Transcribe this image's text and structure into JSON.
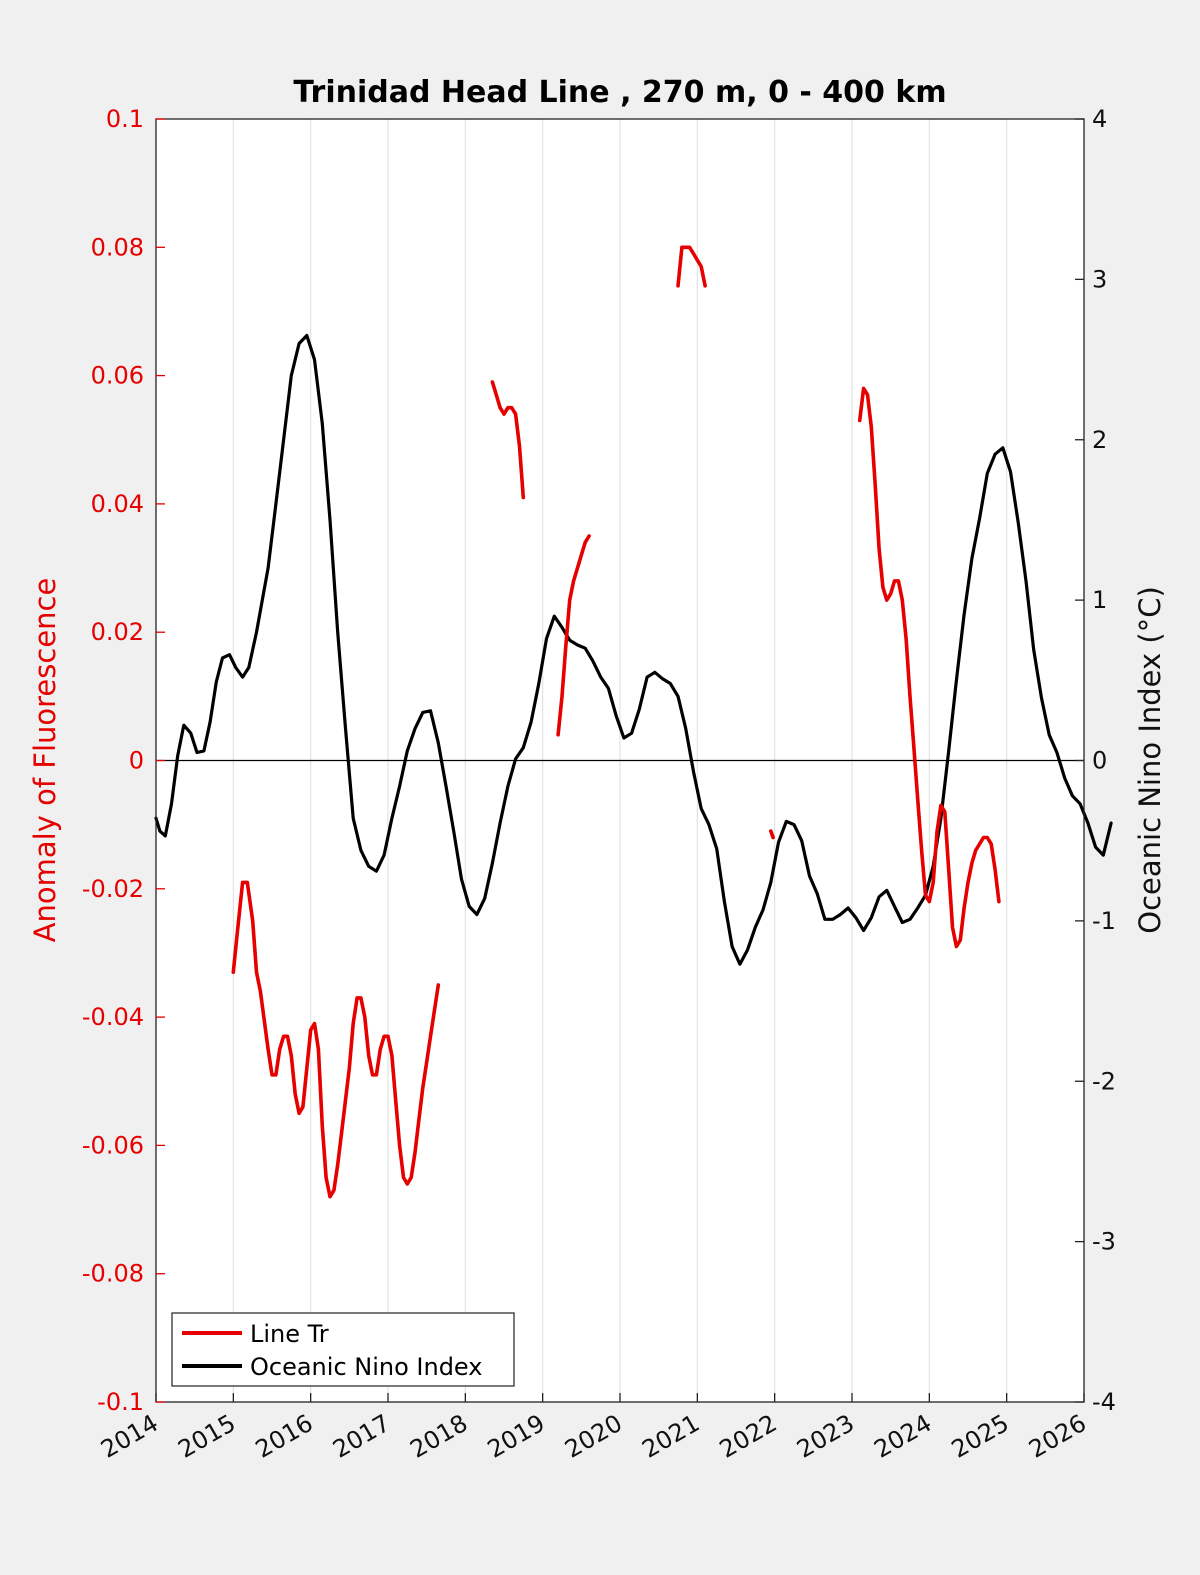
{
  "chart_data": {
    "type": "line",
    "title": "Trinidad Head Line , 270 m, 0 - 400 km",
    "ylabel_left": "Anomaly of Fluorescence",
    "ylabel_right": "Oceanic Nino Index (°C)",
    "xlim": [
      2014,
      2026
    ],
    "ylim_left": [
      -0.1,
      0.1
    ],
    "ylim_right": [
      -4,
      4
    ],
    "x_ticks": [
      "2014",
      "2015",
      "2016",
      "2017",
      "2018",
      "2019",
      "2020",
      "2021",
      "2022",
      "2023",
      "2024",
      "2025",
      "2026"
    ],
    "y_left_ticks": [
      "0.1",
      "0.08",
      "0.06",
      "0.04",
      "0.02",
      "0",
      "-0.02",
      "-0.04",
      "-0.06",
      "-0.08",
      "-0.1"
    ],
    "y_right_ticks": [
      "4",
      "3",
      "2",
      "1",
      "0",
      "-1",
      "-2",
      "-3",
      "-4"
    ],
    "grid": "vertical",
    "legend_position": "bottom-left",
    "colors": {
      "line_tr": "#e60000",
      "oni": "#000000",
      "axis_left": "#e60000"
    },
    "series": [
      {
        "name": "Line Tr",
        "axis": "left",
        "segments": [
          [
            [
              2015.0,
              -0.033
            ],
            [
              2015.05,
              -0.027
            ],
            [
              2015.12,
              -0.019
            ],
            [
              2015.18,
              -0.019
            ],
            [
              2015.25,
              -0.025
            ],
            [
              2015.3,
              -0.033
            ],
            [
              2015.35,
              -0.036
            ],
            [
              2015.45,
              -0.045
            ],
            [
              2015.5,
              -0.049
            ],
            [
              2015.55,
              -0.049
            ],
            [
              2015.6,
              -0.045
            ],
            [
              2015.65,
              -0.043
            ],
            [
              2015.7,
              -0.043
            ],
            [
              2015.75,
              -0.046
            ],
            [
              2015.8,
              -0.052
            ],
            [
              2015.85,
              -0.055
            ],
            [
              2015.9,
              -0.054
            ],
            [
              2015.95,
              -0.048
            ],
            [
              2016.0,
              -0.042
            ],
            [
              2016.05,
              -0.041
            ],
            [
              2016.1,
              -0.045
            ],
            [
              2016.15,
              -0.057
            ],
            [
              2016.2,
              -0.065
            ],
            [
              2016.25,
              -0.068
            ],
            [
              2016.3,
              -0.067
            ],
            [
              2016.35,
              -0.063
            ],
            [
              2016.4,
              -0.058
            ],
            [
              2016.5,
              -0.048
            ],
            [
              2016.55,
              -0.041
            ],
            [
              2016.6,
              -0.037
            ],
            [
              2016.65,
              -0.037
            ],
            [
              2016.7,
              -0.04
            ],
            [
              2016.75,
              -0.046
            ],
            [
              2016.8,
              -0.049
            ],
            [
              2016.85,
              -0.049
            ],
            [
              2016.9,
              -0.045
            ],
            [
              2016.95,
              -0.043
            ],
            [
              2017.0,
              -0.043
            ],
            [
              2017.05,
              -0.046
            ],
            [
              2017.1,
              -0.053
            ],
            [
              2017.15,
              -0.06
            ],
            [
              2017.2,
              -0.065
            ],
            [
              2017.25,
              -0.066
            ],
            [
              2017.3,
              -0.065
            ],
            [
              2017.35,
              -0.061
            ],
            [
              2017.4,
              -0.056
            ],
            [
              2017.45,
              -0.051
            ],
            [
              2017.5,
              -0.047
            ],
            [
              2017.55,
              -0.043
            ],
            [
              2017.6,
              -0.039
            ],
            [
              2017.65,
              -0.035
            ]
          ],
          [
            [
              2018.35,
              0.059
            ],
            [
              2018.4,
              0.057
            ],
            [
              2018.45,
              0.055
            ],
            [
              2018.5,
              0.054
            ],
            [
              2018.55,
              0.055
            ],
            [
              2018.6,
              0.055
            ],
            [
              2018.65,
              0.054
            ],
            [
              2018.7,
              0.049
            ],
            [
              2018.75,
              0.041
            ]
          ],
          [
            [
              2019.2,
              0.004
            ],
            [
              2019.25,
              0.01
            ],
            [
              2019.3,
              0.018
            ],
            [
              2019.35,
              0.025
            ],
            [
              2019.4,
              0.028
            ],
            [
              2019.45,
              0.03
            ],
            [
              2019.5,
              0.032
            ],
            [
              2019.55,
              0.034
            ],
            [
              2019.6,
              0.035
            ]
          ],
          [
            [
              2020.75,
              0.074
            ],
            [
              2020.8,
              0.08
            ],
            [
              2020.85,
              0.08
            ],
            [
              2020.9,
              0.08
            ],
            [
              2020.95,
              0.079
            ],
            [
              2021.0,
              0.078
            ],
            [
              2021.05,
              0.077
            ],
            [
              2021.1,
              0.074
            ]
          ],
          [
            [
              2021.95,
              -0.011
            ],
            [
              2021.98,
              -0.012
            ]
          ],
          [
            [
              2023.1,
              0.053
            ],
            [
              2023.15,
              0.058
            ],
            [
              2023.2,
              0.057
            ],
            [
              2023.25,
              0.052
            ],
            [
              2023.3,
              0.043
            ],
            [
              2023.35,
              0.033
            ],
            [
              2023.4,
              0.027
            ],
            [
              2023.45,
              0.025
            ],
            [
              2023.5,
              0.026
            ],
            [
              2023.55,
              0.028
            ],
            [
              2023.6,
              0.028
            ],
            [
              2023.65,
              0.025
            ],
            [
              2023.7,
              0.019
            ],
            [
              2023.75,
              0.01
            ],
            [
              2023.8,
              0.002
            ],
            [
              2023.85,
              -0.006
            ],
            [
              2023.9,
              -0.014
            ],
            [
              2023.95,
              -0.021
            ],
            [
              2024.0,
              -0.022
            ],
            [
              2024.05,
              -0.019
            ],
            [
              2024.1,
              -0.011
            ],
            [
              2024.15,
              -0.007
            ],
            [
              2024.2,
              -0.008
            ],
            [
              2024.25,
              -0.017
            ],
            [
              2024.3,
              -0.026
            ],
            [
              2024.35,
              -0.029
            ],
            [
              2024.4,
              -0.028
            ],
            [
              2024.45,
              -0.023
            ],
            [
              2024.5,
              -0.019
            ],
            [
              2024.55,
              -0.016
            ],
            [
              2024.6,
              -0.014
            ],
            [
              2024.65,
              -0.013
            ],
            [
              2024.7,
              -0.012
            ],
            [
              2024.75,
              -0.012
            ],
            [
              2024.8,
              -0.013
            ],
            [
              2024.85,
              -0.017
            ],
            [
              2024.9,
              -0.022
            ]
          ]
        ]
      },
      {
        "name": "Oceanic Nino Index",
        "axis": "right",
        "points": [
          [
            2014.0,
            -0.36
          ],
          [
            2014.05,
            -0.44
          ],
          [
            2014.12,
            -0.47
          ],
          [
            2014.2,
            -0.27
          ],
          [
            2014.28,
            0.03
          ],
          [
            2014.36,
            0.22
          ],
          [
            2014.45,
            0.17
          ],
          [
            2014.53,
            0.05
          ],
          [
            2014.62,
            0.06
          ],
          [
            2014.7,
            0.24
          ],
          [
            2014.78,
            0.49
          ],
          [
            2014.86,
            0.64
          ],
          [
            2014.95,
            0.66
          ],
          [
            2015.03,
            0.58
          ],
          [
            2015.12,
            0.52
          ],
          [
            2015.2,
            0.58
          ],
          [
            2015.3,
            0.8
          ],
          [
            2015.45,
            1.2
          ],
          [
            2015.55,
            1.6
          ],
          [
            2015.65,
            2.0
          ],
          [
            2015.75,
            2.4
          ],
          [
            2015.85,
            2.6
          ],
          [
            2015.95,
            2.65
          ],
          [
            2016.05,
            2.5
          ],
          [
            2016.15,
            2.1
          ],
          [
            2016.25,
            1.5
          ],
          [
            2016.35,
            0.8
          ],
          [
            2016.45,
            0.2
          ],
          [
            2016.55,
            -0.36
          ],
          [
            2016.65,
            -0.56
          ],
          [
            2016.75,
            -0.66
          ],
          [
            2016.85,
            -0.69
          ],
          [
            2016.95,
            -0.59
          ],
          [
            2017.05,
            -0.36
          ],
          [
            2017.15,
            -0.16
          ],
          [
            2017.25,
            0.06
          ],
          [
            2017.35,
            0.2
          ],
          [
            2017.45,
            0.3
          ],
          [
            2017.55,
            0.31
          ],
          [
            2017.65,
            0.11
          ],
          [
            2017.75,
            -0.16
          ],
          [
            2017.85,
            -0.44
          ],
          [
            2017.95,
            -0.74
          ],
          [
            2018.05,
            -0.91
          ],
          [
            2018.15,
            -0.96
          ],
          [
            2018.25,
            -0.86
          ],
          [
            2018.35,
            -0.64
          ],
          [
            2018.45,
            -0.39
          ],
          [
            2018.55,
            -0.16
          ],
          [
            2018.65,
            0.01
          ],
          [
            2018.75,
            0.08
          ],
          [
            2018.85,
            0.24
          ],
          [
            2018.95,
            0.48
          ],
          [
            2019.05,
            0.76
          ],
          [
            2019.15,
            0.9
          ],
          [
            2019.25,
            0.83
          ],
          [
            2019.35,
            0.75
          ],
          [
            2019.45,
            0.72
          ],
          [
            2019.55,
            0.7
          ],
          [
            2019.65,
            0.62
          ],
          [
            2019.75,
            0.52
          ],
          [
            2019.85,
            0.45
          ],
          [
            2019.95,
            0.28
          ],
          [
            2020.05,
            0.14
          ],
          [
            2020.15,
            0.17
          ],
          [
            2020.25,
            0.32
          ],
          [
            2020.35,
            0.52
          ],
          [
            2020.45,
            0.55
          ],
          [
            2020.55,
            0.51
          ],
          [
            2020.65,
            0.48
          ],
          [
            2020.75,
            0.4
          ],
          [
            2020.85,
            0.2
          ],
          [
            2020.95,
            -0.07
          ],
          [
            2021.05,
            -0.3
          ],
          [
            2021.15,
            -0.4
          ],
          [
            2021.25,
            -0.55
          ],
          [
            2021.35,
            -0.88
          ],
          [
            2021.45,
            -1.16
          ],
          [
            2021.55,
            -1.27
          ],
          [
            2021.65,
            -1.18
          ],
          [
            2021.75,
            -1.04
          ],
          [
            2021.85,
            -0.93
          ],
          [
            2021.95,
            -0.76
          ],
          [
            2022.05,
            -0.51
          ],
          [
            2022.15,
            -0.38
          ],
          [
            2022.25,
            -0.4
          ],
          [
            2022.35,
            -0.5
          ],
          [
            2022.45,
            -0.72
          ],
          [
            2022.55,
            -0.83
          ],
          [
            2022.65,
            -0.99
          ],
          [
            2022.75,
            -0.99
          ],
          [
            2022.85,
            -0.96
          ],
          [
            2022.95,
            -0.92
          ],
          [
            2023.05,
            -0.98
          ],
          [
            2023.15,
            -1.06
          ],
          [
            2023.25,
            -0.98
          ],
          [
            2023.35,
            -0.85
          ],
          [
            2023.45,
            -0.81
          ],
          [
            2023.55,
            -0.91
          ],
          [
            2023.65,
            -1.01
          ],
          [
            2023.75,
            -0.99
          ],
          [
            2023.85,
            -0.92
          ],
          [
            2023.95,
            -0.84
          ],
          [
            2024.05,
            -0.66
          ],
          [
            2024.15,
            -0.36
          ],
          [
            2024.25,
            0.06
          ],
          [
            2024.35,
            0.5
          ],
          [
            2024.45,
            0.91
          ],
          [
            2024.55,
            1.26
          ],
          [
            2024.65,
            1.51
          ],
          [
            2024.75,
            1.79
          ],
          [
            2024.85,
            1.91
          ],
          [
            2024.95,
            1.95
          ],
          [
            2025.05,
            1.8
          ],
          [
            2025.15,
            1.48
          ],
          [
            2025.25,
            1.12
          ],
          [
            2025.35,
            0.69
          ],
          [
            2025.45,
            0.39
          ],
          [
            2025.55,
            0.16
          ],
          [
            2025.65,
            0.05
          ],
          [
            2025.75,
            -0.11
          ],
          [
            2025.85,
            -0.22
          ],
          [
            2025.95,
            -0.27
          ],
          [
            2026.05,
            -0.39
          ],
          [
            2026.15,
            -0.54
          ],
          [
            2026.25,
            -0.59
          ],
          [
            2026.35,
            -0.39
          ]
        ]
      }
    ]
  }
}
